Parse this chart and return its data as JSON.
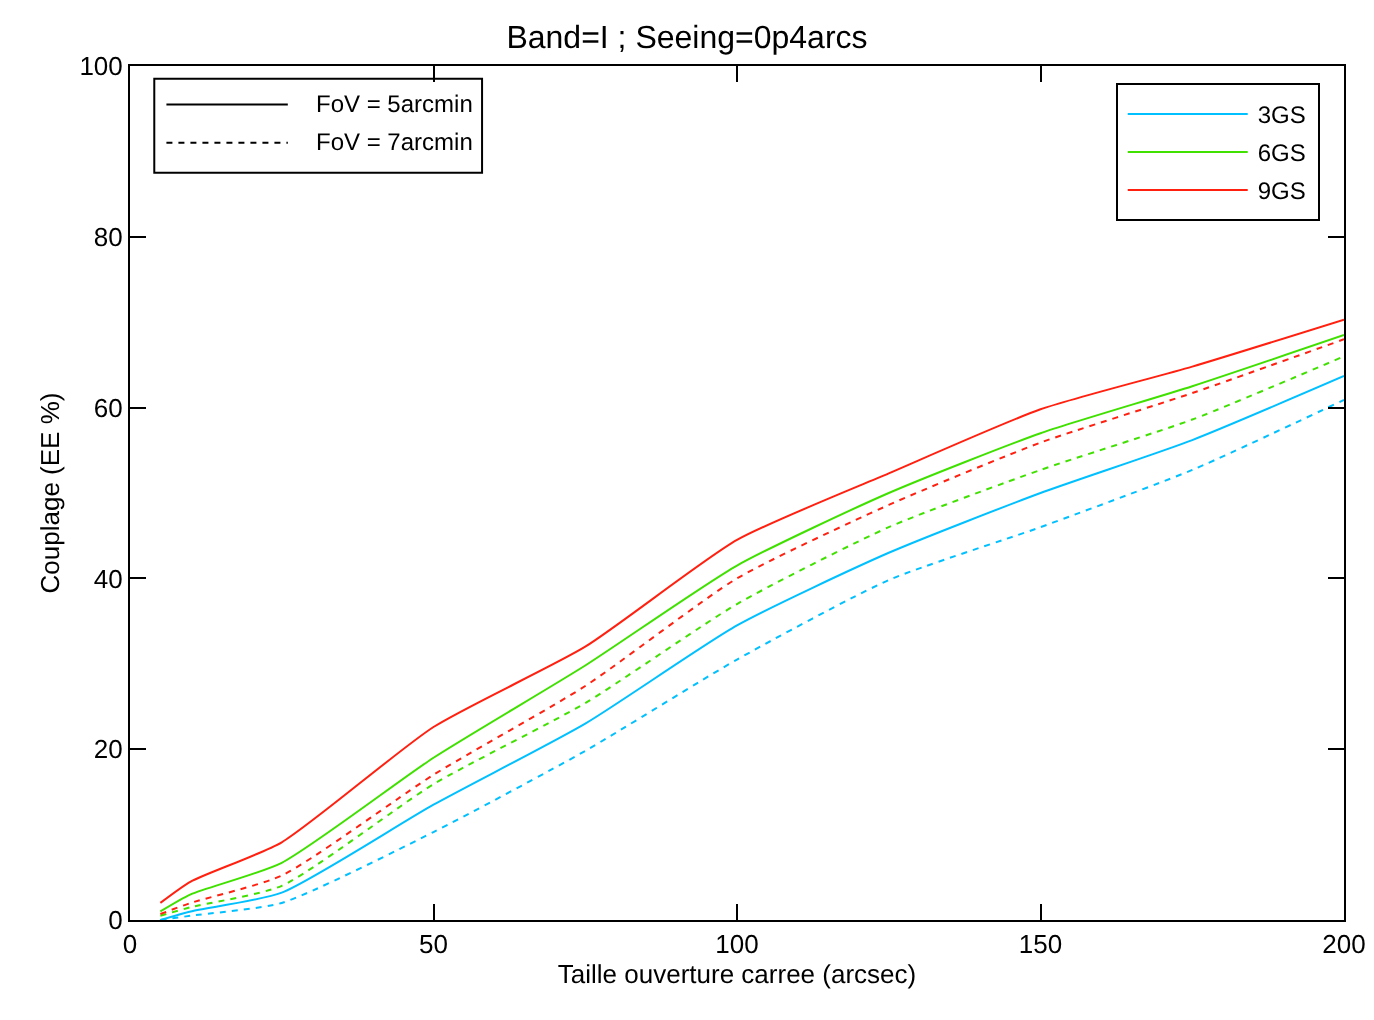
{
  "chart_data": {
    "type": "line",
    "title": "Band=I ; Seeing=0p4arcs",
    "xlabel": "Taille ouverture carree (arcsec)",
    "ylabel": "Couplage (EE %)",
    "x": [
      5,
      10,
      25,
      50,
      75,
      100,
      125,
      150,
      175,
      200
    ],
    "series": [
      {
        "name": "3GS",
        "color": "#00c0ff",
        "line_style": "solid",
        "values": [
          0,
          1,
          3.2,
          13.5,
          23,
          34.5,
          43,
          50,
          56.2,
          63.7
        ]
      },
      {
        "name": "6GS",
        "color": "#40e000",
        "line_style": "solid",
        "values": [
          1,
          3,
          6.7,
          19,
          29.8,
          41.5,
          50,
          57,
          62.5,
          68.5
        ]
      },
      {
        "name": "9GS",
        "color": "#ff2010",
        "line_style": "solid",
        "values": [
          2,
          4.5,
          9.1,
          22.6,
          32,
          44.5,
          52.3,
          59.8,
          64.8,
          70.3
        ]
      },
      {
        "color": "#00c0ff",
        "line_style": "dotted",
        "values": [
          0,
          0.5,
          2,
          10.3,
          19.8,
          30.5,
          39.8,
          46,
          52.7,
          60.9
        ]
      },
      {
        "color": "#40e000",
        "line_style": "dotted",
        "values": [
          0.5,
          1.5,
          4,
          15.9,
          25.4,
          37,
          46,
          52.7,
          58.6,
          66
        ]
      },
      {
        "color": "#ff2010",
        "line_style": "dotted",
        "values": [
          0.7,
          2,
          5.2,
          17,
          27.4,
          40,
          48.6,
          55.9,
          61.7,
          68
        ]
      }
    ],
    "annotations": [
      "FoV = 5arcmin",
      "FoV = 7arcmin"
    ],
    "xlim": [
      0,
      200
    ],
    "xticks": [
      0,
      50,
      100,
      150,
      200
    ],
    "ylim": [
      0,
      100
    ],
    "yticks": [
      0,
      20,
      40,
      60,
      80,
      100
    ],
    "grid": false,
    "legend": "top right",
    "marker": "none"
  }
}
